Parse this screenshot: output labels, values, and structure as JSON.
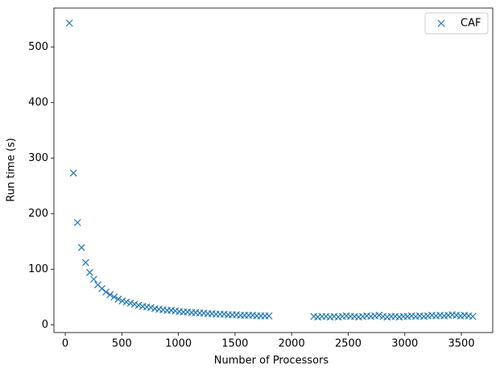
{
  "chart_data": {
    "type": "scatter",
    "xlabel": "Number of Processors",
    "ylabel": "Run time (s)",
    "xlim": [
      -100,
      3777
    ],
    "ylim": [
      -14,
      570
    ],
    "xticks": [
      0,
      500,
      1000,
      1500,
      2000,
      2500,
      3000,
      3500
    ],
    "yticks": [
      0,
      100,
      200,
      300,
      400,
      500
    ],
    "legend": "upper right",
    "series": [
      {
        "name": "CAF",
        "color": "#1f77b4",
        "marker": "x",
        "x": [
          36,
          72,
          108,
          144,
          180,
          216,
          252,
          288,
          324,
          360,
          396,
          432,
          468,
          504,
          540,
          576,
          612,
          648,
          684,
          720,
          756,
          792,
          828,
          864,
          900,
          936,
          972,
          1008,
          1044,
          1080,
          1116,
          1152,
          1188,
          1224,
          1260,
          1296,
          1332,
          1368,
          1404,
          1440,
          1476,
          1512,
          1548,
          1584,
          1620,
          1656,
          1692,
          1728,
          1764,
          1800,
          2196,
          2232,
          2268,
          2304,
          2340,
          2376,
          2412,
          2448,
          2484,
          2520,
          2556,
          2592,
          2628,
          2664,
          2700,
          2736,
          2772,
          2808,
          2844,
          2880,
          2916,
          2952,
          2988,
          3024,
          3060,
          3096,
          3132,
          3168,
          3204,
          3240,
          3276,
          3312,
          3348,
          3384,
          3420,
          3456,
          3492,
          3528,
          3564,
          3600
        ],
        "values": [
          543,
          273,
          184,
          139,
          112,
          94,
          82,
          72,
          65,
          59,
          54,
          50,
          46,
          43,
          41,
          39,
          37,
          35,
          33,
          32,
          31,
          29,
          28,
          27,
          26,
          26,
          25,
          24,
          23,
          23,
          22,
          22,
          21,
          21,
          20,
          20,
          19,
          19,
          19,
          18,
          18,
          18,
          17,
          17,
          17,
          17,
          16,
          16,
          16,
          16,
          15,
          14,
          15,
          15,
          14,
          15,
          14,
          15,
          16,
          15,
          15,
          14,
          15,
          16,
          15,
          16,
          17,
          15,
          14,
          15,
          15,
          14,
          15,
          15,
          16,
          15,
          16,
          15,
          16,
          17,
          16,
          17,
          16,
          17,
          18,
          17,
          16,
          17,
          16,
          15
        ]
      }
    ]
  }
}
